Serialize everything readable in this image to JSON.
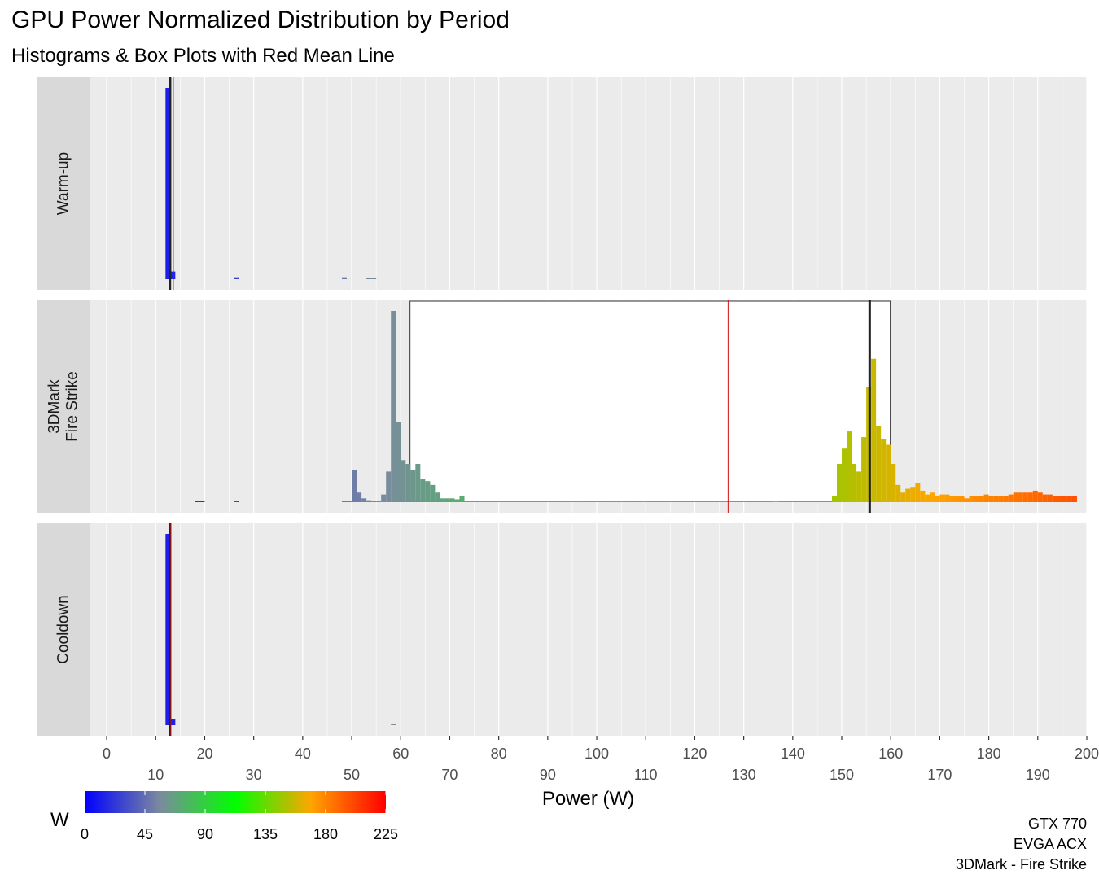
{
  "title": "GPU Power Normalized Distribution by Period",
  "subtitle": "Histograms & Box Plots with Red Mean Line",
  "caption": [
    "GTX 770",
    "EVGA ACX",
    "3DMark - Fire Strike"
  ],
  "chart_data": {
    "type": "histogram",
    "xlabel": "Power (W)",
    "xlim": [
      -3.5,
      200
    ],
    "x_ticks_row1": [
      0,
      20,
      40,
      60,
      80,
      100,
      120,
      140,
      160,
      180,
      200
    ],
    "x_ticks_row2": [
      10,
      30,
      50,
      70,
      90,
      110,
      130,
      150,
      170,
      190
    ],
    "bin_width": 1,
    "legend": {
      "title": "W",
      "ticks": [
        0,
        45,
        90,
        135,
        180,
        225
      ],
      "range": [
        0,
        225
      ],
      "colors": [
        "#0000ff",
        "#7b8a9e",
        "#00ff00",
        "#ffa500",
        "#ff0000"
      ]
    },
    "panels": [
      {
        "label": "Warm-up",
        "bins": [
          [
            12.5,
            1.0
          ],
          [
            13.5,
            0.04
          ],
          [
            26.5,
            0.01
          ],
          [
            48.5,
            0.01
          ],
          [
            53.5,
            0.005
          ],
          [
            54.5,
            0.005
          ]
        ],
        "box": {
          "q1": 12.7,
          "median": 12.9,
          "q3": 13.1,
          "whisker_low": 12.6,
          "whisker_high": 13.3
        },
        "mean": 13.6
      },
      {
        "label": "3DMark\nFire Strike",
        "bins": [
          [
            18.5,
            0.005
          ],
          [
            19.5,
            0.005
          ],
          [
            26.5,
            0.005
          ],
          [
            48.5,
            0.005
          ],
          [
            49.5,
            0.005
          ],
          [
            50.5,
            0.17
          ],
          [
            51.5,
            0.05
          ],
          [
            52.5,
            0.02
          ],
          [
            53.5,
            0.01
          ],
          [
            54.5,
            0.005
          ],
          [
            55.5,
            0.005
          ],
          [
            56.5,
            0.04
          ],
          [
            57.5,
            0.16
          ],
          [
            58.5,
            1.0
          ],
          [
            59.5,
            0.42
          ],
          [
            60.5,
            0.22
          ],
          [
            61.5,
            0.2
          ],
          [
            62.5,
            0.17
          ],
          [
            63.5,
            0.2
          ],
          [
            64.5,
            0.12
          ],
          [
            65.5,
            0.11
          ],
          [
            66.5,
            0.09
          ],
          [
            67.5,
            0.05
          ],
          [
            68.5,
            0.02
          ],
          [
            69.5,
            0.02
          ],
          [
            70.5,
            0.02
          ],
          [
            71.5,
            0.015
          ],
          [
            72.5,
            0.03
          ],
          [
            73.5,
            0.005
          ],
          [
            74.5,
            0.005
          ],
          [
            75.5,
            0.005
          ],
          [
            77.5,
            0.005
          ],
          [
            79.5,
            0.005
          ],
          [
            82.5,
            0.005
          ],
          [
            85.5,
            0.005
          ],
          [
            92.5,
            0.005
          ],
          [
            93.5,
            0.005
          ],
          [
            96.5,
            0.005
          ],
          [
            102.5,
            0.005
          ],
          [
            105.5,
            0.005
          ],
          [
            109.5,
            0.005
          ],
          [
            136.5,
            0.005
          ],
          [
            148.5,
            0.03
          ],
          [
            149.5,
            0.2
          ],
          [
            150.5,
            0.28
          ],
          [
            151.5,
            0.37
          ],
          [
            152.5,
            0.2
          ],
          [
            153.5,
            0.16
          ],
          [
            154.5,
            0.34
          ],
          [
            155.5,
            0.6
          ],
          [
            156.5,
            0.75
          ],
          [
            157.5,
            0.4
          ],
          [
            158.5,
            0.33
          ],
          [
            159.5,
            0.3
          ],
          [
            160.5,
            0.2
          ],
          [
            161.5,
            0.09
          ],
          [
            162.5,
            0.05
          ],
          [
            163.5,
            0.07
          ],
          [
            164.5,
            0.08
          ],
          [
            165.5,
            0.1
          ],
          [
            166.5,
            0.06
          ],
          [
            167.5,
            0.04
          ],
          [
            168.5,
            0.05
          ],
          [
            169.5,
            0.03
          ],
          [
            170.5,
            0.04
          ],
          [
            171.5,
            0.04
          ],
          [
            172.5,
            0.03
          ],
          [
            173.5,
            0.03
          ],
          [
            174.5,
            0.03
          ],
          [
            175.5,
            0.02
          ],
          [
            176.5,
            0.03
          ],
          [
            177.5,
            0.03
          ],
          [
            178.5,
            0.03
          ],
          [
            179.5,
            0.04
          ],
          [
            180.5,
            0.03
          ],
          [
            181.5,
            0.03
          ],
          [
            182.5,
            0.03
          ],
          [
            183.5,
            0.03
          ],
          [
            184.5,
            0.04
          ],
          [
            185.5,
            0.05
          ],
          [
            186.5,
            0.05
          ],
          [
            187.5,
            0.05
          ],
          [
            188.5,
            0.05
          ],
          [
            189.5,
            0.06
          ],
          [
            190.5,
            0.05
          ],
          [
            191.5,
            0.04
          ],
          [
            192.5,
            0.04
          ],
          [
            193.5,
            0.03
          ],
          [
            194.5,
            0.03
          ],
          [
            195.5,
            0.03
          ],
          [
            196.5,
            0.03
          ],
          [
            197.5,
            0.03
          ]
        ],
        "box": {
          "q1": 61.9,
          "median": 155.7,
          "q3": 159.9,
          "whisker_low": 61.9,
          "whisker_high": 159.9
        },
        "mean": 126.8
      },
      {
        "label": "Cooldown",
        "bins": [
          [
            12.5,
            1.0
          ],
          [
            13.5,
            0.03
          ],
          [
            58.5,
            0.005
          ]
        ],
        "box": {
          "q1": 12.7,
          "median": 12.9,
          "q3": 13.1,
          "whisker_low": 12.6,
          "whisker_high": 13.3
        },
        "mean": 13.1
      }
    ]
  }
}
